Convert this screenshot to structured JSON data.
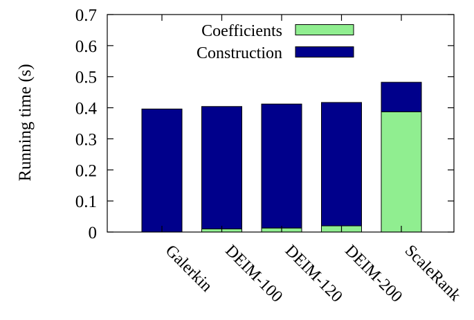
{
  "chart_data": {
    "type": "bar",
    "stacked": true,
    "categories": [
      "Galerkin",
      "DEIM-100",
      "DEIM-120",
      "DEIM-200",
      "ScaleRank"
    ],
    "series": [
      {
        "name": "Coefficients",
        "color": "#90ee90",
        "values": [
          0.0,
          0.01,
          0.013,
          0.02,
          0.387
        ]
      },
      {
        "name": "Construction",
        "color": "#00008b",
        "values": [
          0.396,
          0.394,
          0.399,
          0.397,
          0.095
        ]
      }
    ],
    "title": "",
    "xlabel": "",
    "ylabel": "Running time (s)",
    "ylim": [
      0,
      0.7
    ],
    "yticks": [
      0,
      0.1,
      0.2,
      0.3,
      0.4,
      0.5,
      0.6,
      0.7
    ],
    "ytick_labels": [
      "0",
      "0.1",
      "0.2",
      "0.3",
      "0.4",
      "0.5",
      "0.6",
      "0.7"
    ],
    "grid": false,
    "legend_position": "top-center",
    "xtick_rotation": "-45"
  }
}
